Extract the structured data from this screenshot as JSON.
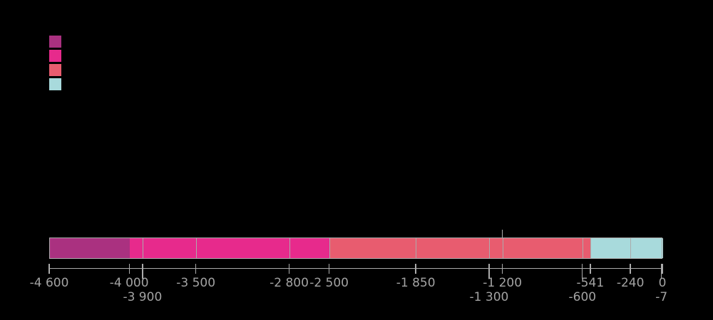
{
  "background_color": "#000000",
  "legend": {
    "swatches": [
      {
        "name": "legend-swatch-1",
        "color": "#AA3180"
      },
      {
        "name": "legend-swatch-2",
        "color": "#E72A8C"
      },
      {
        "name": "legend-swatch-3",
        "color": "#E85C6F"
      },
      {
        "name": "legend-swatch-4",
        "color": "#A8DADC"
      }
    ]
  },
  "chart_data": {
    "type": "bar",
    "orientation": "horizontal-timeline",
    "title": "",
    "xlabel": "",
    "ylabel": "",
    "x_axis": {
      "min": -4600,
      "max": 0,
      "axis_color": "#ABABAB",
      "tick_color": "#ABABAB",
      "tick_label_color": "#A3A3A3",
      "grid": false
    },
    "colors": {
      "purple": "#AA3180",
      "pink": "#E72A8C",
      "salmon": "#E85C6F",
      "blue": "#A8DADC",
      "divider": "#ABABAB"
    },
    "segments": [
      {
        "start": -4600,
        "end": -4000,
        "color": "purple"
      },
      {
        "start": -4000,
        "end": -3900,
        "color": "pink"
      },
      {
        "start": -3900,
        "end": -3500,
        "color": "pink"
      },
      {
        "start": -3500,
        "end": -2800,
        "color": "pink"
      },
      {
        "start": -2800,
        "end": -2500,
        "color": "pink"
      },
      {
        "start": -2500,
        "end": -1850,
        "color": "salmon"
      },
      {
        "start": -1850,
        "end": -1300,
        "color": "salmon"
      },
      {
        "start": -1300,
        "end": -1200,
        "color": "salmon"
      },
      {
        "start": -1200,
        "end": -600,
        "color": "salmon"
      },
      {
        "start": -600,
        "end": -541,
        "color": "salmon"
      },
      {
        "start": -541,
        "end": -240,
        "color": "blue"
      },
      {
        "start": -240,
        "end": -7,
        "color": "blue"
      },
      {
        "start": -7,
        "end": 0,
        "color": "blue"
      }
    ],
    "ticks": [
      {
        "value": -4600,
        "label": "-4 600",
        "row": 1
      },
      {
        "value": -4000,
        "label": "-4 000",
        "row": 1
      },
      {
        "value": -3900,
        "label": "-3 900",
        "row": 2
      },
      {
        "value": -3500,
        "label": "-3 500",
        "row": 1
      },
      {
        "value": -2800,
        "label": "-2 800",
        "row": 1
      },
      {
        "value": -2500,
        "label": "-2 500",
        "row": 1
      },
      {
        "value": -1850,
        "label": "-1 850",
        "row": 1
      },
      {
        "value": -1300,
        "label": "-1 300",
        "row": 2
      },
      {
        "value": -1200,
        "label": "-1 200",
        "row": 1
      },
      {
        "value": -600,
        "label": "-600",
        "row": 2
      },
      {
        "value": -541,
        "label": "-541",
        "row": 1
      },
      {
        "value": -240,
        "label": "-240",
        "row": 1
      },
      {
        "value": -7,
        "label": "-7",
        "row": 2
      },
      {
        "value": 0,
        "label": "0",
        "row": 1
      }
    ],
    "annotations": [
      {
        "value": -1200,
        "type": "tick-above-bar"
      }
    ]
  }
}
